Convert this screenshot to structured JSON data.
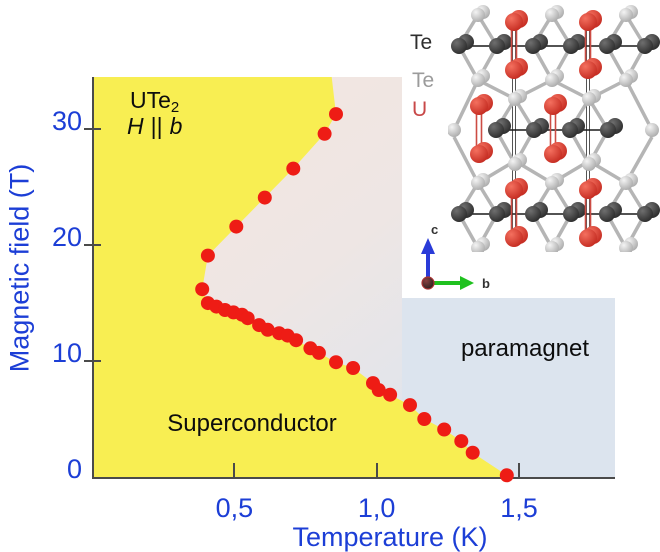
{
  "chart": {
    "y_axis": {
      "title": "Magnetic field (T)",
      "tick_labels": [
        "30",
        "20",
        "10",
        "0"
      ],
      "tick_values": [
        30,
        20,
        10,
        0
      ],
      "color": "#1c3ed6"
    },
    "x_axis": {
      "title": "Temperature (K)",
      "tick_labels": [
        "0,5",
        "1,0",
        "1,5"
      ],
      "tick_values": [
        0.5,
        1.0,
        1.5
      ],
      "color": "#1c3ed6"
    },
    "labels": {
      "compound": "UTe",
      "compound_sub": "2",
      "field_h": "H",
      "field_sep": "||",
      "field_b": "b",
      "superconductor": "Superconductor",
      "paramagnet": "paramagnet"
    }
  },
  "inset": {
    "legend": [
      {
        "label": "Te",
        "color": "#2e2e2e"
      },
      {
        "label": "Te",
        "color": "#9b9b9b"
      },
      {
        "label": "U",
        "color": "#c84848"
      }
    ],
    "axes": {
      "up": "c",
      "right": "b"
    }
  },
  "chart_data": {
    "type": "scatter",
    "title": "UTe2, H || b : magnetic field - temperature phase diagram",
    "xlabel": "Temperature (K)",
    "ylabel": "Magnetic field (T)",
    "xlim": [
      0,
      1.83
    ],
    "ylim": [
      0,
      34.5
    ],
    "x_ticks": [
      0.5,
      1.0,
      1.5
    ],
    "y_ticks": [
      0,
      10,
      20,
      30
    ],
    "grid": false,
    "regions": [
      {
        "name": "Superconductor",
        "color": "#f8ee52"
      },
      {
        "name": "paramagnet",
        "color": "#dce4ee"
      },
      {
        "name": "",
        "color": "#f4e4dd"
      }
    ],
    "series": [
      {
        "name": "phase boundary points",
        "marker": "circle",
        "color": "#ee1c15",
        "points": [
          [
            0.85,
            31.3
          ],
          [
            0.81,
            29.6
          ],
          [
            0.7,
            26.6
          ],
          [
            0.6,
            24.1
          ],
          [
            0.5,
            21.6
          ],
          [
            0.4,
            19.1
          ],
          [
            0.38,
            16.2
          ],
          [
            0.4,
            15.0
          ],
          [
            0.43,
            14.7
          ],
          [
            0.46,
            14.4
          ],
          [
            0.49,
            14.2
          ],
          [
            0.52,
            14.0
          ],
          [
            0.54,
            13.7
          ],
          [
            0.58,
            13.1
          ],
          [
            0.61,
            12.7
          ],
          [
            0.65,
            12.4
          ],
          [
            0.68,
            12.2
          ],
          [
            0.71,
            11.8
          ],
          [
            0.76,
            11.1
          ],
          [
            0.79,
            10.7
          ],
          [
            0.85,
            9.9
          ],
          [
            0.91,
            9.4
          ],
          [
            0.98,
            8.1
          ],
          [
            1.0,
            7.5
          ],
          [
            1.04,
            7.1
          ],
          [
            1.11,
            6.2
          ],
          [
            1.16,
            5.0
          ],
          [
            1.23,
            4.1
          ],
          [
            1.29,
            3.1
          ],
          [
            1.33,
            2.1
          ],
          [
            1.45,
            0.15
          ]
        ]
      }
    ],
    "boundary": {
      "top_T": 0.835,
      "bottom_T": 1.45
    }
  }
}
